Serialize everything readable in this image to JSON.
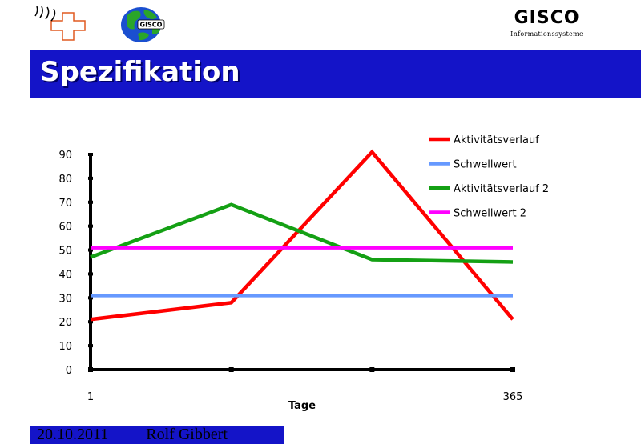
{
  "brand": {
    "name": "GISCO",
    "subtitle": "Informationssysteme",
    "globe_text": "GISCO"
  },
  "slide": {
    "title": "Spezifikation"
  },
  "footer": {
    "date": "20.10.2011",
    "author": "Rolf Gibbert"
  },
  "colors": {
    "title_bar": "#1414c8",
    "swiss_cross": "#e05a20"
  },
  "chart_data": {
    "type": "line",
    "title": "",
    "xlabel": "Tage",
    "ylabel": "",
    "x": [
      1,
      2,
      3,
      4
    ],
    "x_tick_labels": [
      "1",
      "",
      "",
      "365"
    ],
    "ylim": [
      0,
      90
    ],
    "yticks": [
      0,
      10,
      20,
      30,
      40,
      50,
      60,
      70,
      80,
      90
    ],
    "grid": false,
    "legend_position": "top-right",
    "series": [
      {
        "name": "Aktivitätsverlauf",
        "color": "#ff0000",
        "values": [
          21,
          28,
          91,
          21
        ]
      },
      {
        "name": "Schwellwert",
        "color": "#6699ff",
        "values": [
          31,
          31,
          31,
          31
        ]
      },
      {
        "name": "Aktivitätsverlauf 2",
        "color": "#14a014",
        "values": [
          47,
          69,
          46,
          45
        ]
      },
      {
        "name": "Schwellwert 2",
        "color": "#ff00ff",
        "values": [
          51,
          51,
          51,
          51
        ]
      }
    ]
  }
}
